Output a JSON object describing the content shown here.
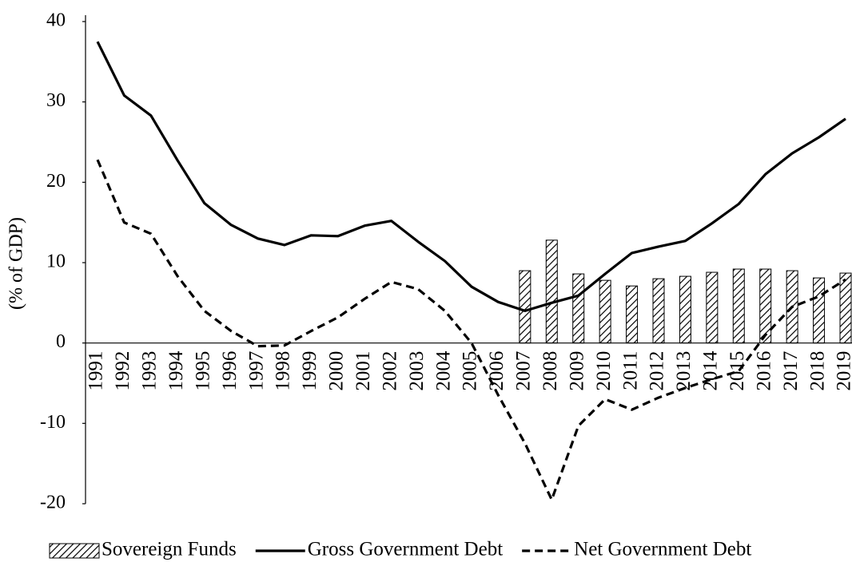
{
  "chart_data": {
    "type": "bar-line",
    "y_label": "(% of GDP)",
    "categories": [
      "1991",
      "1992",
      "1993",
      "1994",
      "1995",
      "1996",
      "1997",
      "1998",
      "1999",
      "2000",
      "2001",
      "2002",
      "2003",
      "2004",
      "2005",
      "2006",
      "2007",
      "2008",
      "2009",
      "2010",
      "2011",
      "2012",
      "2013",
      "2014",
      "2015",
      "2016",
      "2017",
      "2018",
      "2019"
    ],
    "series": [
      {
        "name": "Sovereign Funds",
        "type": "bar",
        "style": "hatched",
        "color": "#000000",
        "values": [
          null,
          null,
          null,
          null,
          null,
          null,
          null,
          null,
          null,
          null,
          null,
          null,
          null,
          null,
          null,
          null,
          9.0,
          12.8,
          8.6,
          7.8,
          7.1,
          8.0,
          8.3,
          8.8,
          9.2,
          9.2,
          9.0,
          8.1,
          8.7
        ]
      },
      {
        "name": "Gross Government Debt",
        "type": "line",
        "style": "solid",
        "color": "#000000",
        "values": [
          37.5,
          30.8,
          28.3,
          22.7,
          17.4,
          14.7,
          13.0,
          12.2,
          13.4,
          13.3,
          14.6,
          15.2,
          12.6,
          10.2,
          7.0,
          5.1,
          4.0,
          5.0,
          5.9,
          8.6,
          11.2,
          12.0,
          12.7,
          14.9,
          17.3,
          21.0,
          23.6,
          25.6,
          27.9
        ]
      },
      {
        "name": "Net Government Debt",
        "type": "line",
        "style": "dashed",
        "color": "#000000",
        "values": [
          22.8,
          15.0,
          13.6,
          8.3,
          4.0,
          1.5,
          -0.4,
          -0.3,
          1.5,
          3.2,
          5.5,
          7.6,
          6.7,
          4.0,
          0.0,
          -6.5,
          -12.5,
          -19.5,
          -10.3,
          -7.0,
          -8.3,
          -6.8,
          -5.6,
          -4.5,
          -3.5,
          1.0,
          4.5,
          5.8,
          7.9
        ]
      }
    ],
    "ylim": [
      -20,
      40
    ],
    "yticks": [
      -20,
      -10,
      0,
      10,
      20,
      30,
      40
    ],
    "grid": false,
    "legend": "bottom"
  }
}
